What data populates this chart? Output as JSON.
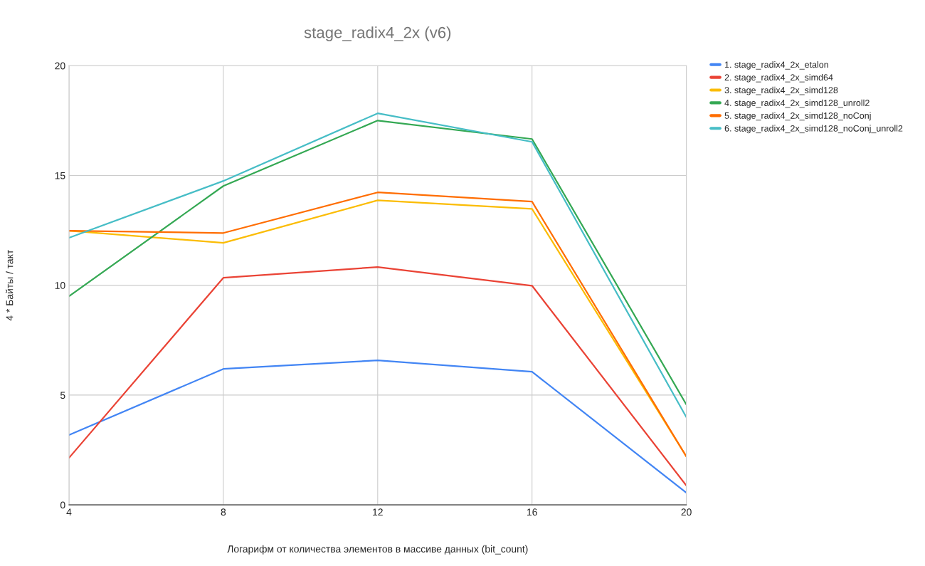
{
  "chart_data": {
    "type": "line",
    "title": "stage_radix4_2x (v6)",
    "xlabel": "Логарифм от количества элементов в массиве данных (bit_count)",
    "ylabel": "4 * Байты / такт",
    "x": [
      4,
      8,
      12,
      16,
      20
    ],
    "series": [
      {
        "name": "1. stage_radix4_2x_etalon",
        "color": "#4285f4",
        "values": [
          3.18,
          6.19,
          6.58,
          6.06,
          0.55
        ]
      },
      {
        "name": "2. stage_radix4_2x_simd64",
        "color": "#ea4335",
        "values": [
          2.14,
          10.34,
          10.83,
          9.98,
          0.88
        ]
      },
      {
        "name": "3. stage_radix4_2x_simd128",
        "color": "#fbbc04",
        "values": [
          12.48,
          11.93,
          13.87,
          13.48,
          2.2
        ]
      },
      {
        "name": "4. stage_radix4_2x_simd128_unroll2",
        "color": "#34a853",
        "values": [
          9.5,
          14.52,
          17.5,
          16.66,
          4.57
        ]
      },
      {
        "name": "5. stage_radix4_2x_simd128_noConj",
        "color": "#ff6d01",
        "values": [
          12.48,
          12.38,
          14.23,
          13.81,
          2.2
        ]
      },
      {
        "name": "6. stage_radix4_2x_simd128_noConj_unroll2",
        "color": "#46bdc6",
        "values": [
          12.16,
          14.75,
          17.83,
          16.53,
          3.99
        ]
      }
    ],
    "xlim": [
      4,
      20
    ],
    "xticks": [
      4,
      8,
      12,
      16,
      20
    ],
    "ylim": [
      0,
      20
    ],
    "yticks": [
      0,
      5,
      10,
      15,
      20
    ],
    "grid": true,
    "legend": "right"
  }
}
